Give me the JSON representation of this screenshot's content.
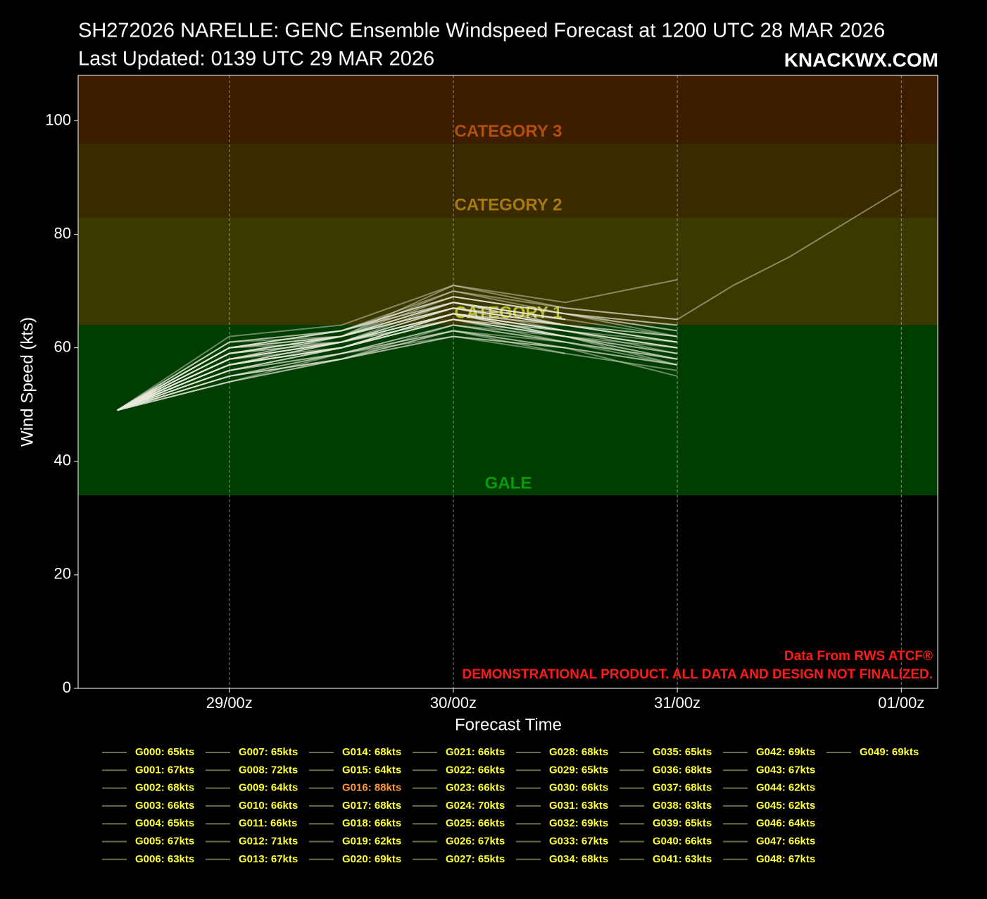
{
  "chart_data": {
    "type": "line",
    "title": "SH272026 NARELLE: GENC Ensemble Windspeed Forecast at 1200 UTC 28 MAR 2026",
    "subtitle": "Last Updated: 0139 UTC 29 MAR 2026",
    "brand": "KNACKWX.COM",
    "x_label": "Forecast Time",
    "y_label": "Wind Speed (kts)",
    "annotations": [
      "Data From RWS ATCF®",
      "DEMONSTRATIONAL PRODUCT. ALL DATA AND DESIGN NOT FINALIZED."
    ],
    "annotation_color": "#ff1a1a",
    "x": [
      0,
      12,
      24,
      36,
      48,
      60,
      66,
      72,
      84
    ],
    "xlim": [
      -4.2,
      87.9
    ],
    "xticks": [
      {
        "value": 12,
        "label": "29/00z"
      },
      {
        "value": 36,
        "label": "30/00z"
      },
      {
        "value": 60,
        "label": "31/00z"
      },
      {
        "value": 84,
        "label": "01/00z"
      }
    ],
    "ylim": [
      0,
      108
    ],
    "yticks": [
      0,
      20,
      40,
      60,
      80,
      100
    ],
    "grid": true,
    "line_color": "#e8e8dc",
    "legend_line_color": "#6b6b45",
    "bands": [
      {
        "name": "GALE",
        "from": 34,
        "to": 64,
        "color": "#003d00",
        "label_color": "#0a9a0a"
      },
      {
        "name": "CATEGORY 1",
        "from": 64,
        "to": 83,
        "color": "#3a3a00",
        "label_color": "#bdbd1e"
      },
      {
        "name": "CATEGORY 2",
        "from": 83,
        "to": 96,
        "color": "#3a2a00",
        "label_color": "#a87a10"
      },
      {
        "name": "CATEGORY 3",
        "from": 96,
        "to": 108,
        "color": "#3d1c00",
        "label_color": "#b0500a"
      }
    ],
    "series": [
      {
        "name": "G000: 65kts",
        "color": "#ffff33",
        "values": [
          49,
          58,
          61,
          65,
          63,
          60,
          null,
          null,
          null
        ]
      },
      {
        "name": "G001: 67kts",
        "color": "#ffff33",
        "values": [
          49,
          59,
          62,
          67,
          64,
          null,
          null,
          null,
          null
        ]
      },
      {
        "name": "G002: 68kts",
        "color": "#ffff33",
        "values": [
          49,
          60,
          63,
          68,
          65,
          62,
          null,
          null,
          null
        ]
      },
      {
        "name": "G003: 66kts",
        "color": "#ffff33",
        "values": [
          49,
          57,
          60,
          66,
          62,
          58,
          null,
          null,
          null
        ]
      },
      {
        "name": "G004: 65kts",
        "color": "#ffff33",
        "values": [
          49,
          56,
          60,
          65,
          61,
          null,
          null,
          null,
          null
        ]
      },
      {
        "name": "G005: 67kts",
        "color": "#ffff33",
        "values": [
          49,
          58,
          62,
          67,
          64,
          61,
          null,
          null,
          null
        ]
      },
      {
        "name": "G006: 63kts",
        "color": "#ffff33",
        "values": [
          49,
          55,
          59,
          63,
          60,
          57,
          null,
          null,
          null
        ]
      },
      {
        "name": "G007: 65kts",
        "color": "#ffff33",
        "values": [
          49,
          57,
          61,
          65,
          62,
          null,
          null,
          null,
          null
        ]
      },
      {
        "name": "G008: 72kts",
        "color": "#ffff33",
        "values": [
          49,
          60,
          62,
          71,
          68,
          72,
          null,
          null,
          null
        ]
      },
      {
        "name": "G009: 64kts",
        "color": "#ffff33",
        "values": [
          49,
          56,
          59,
          64,
          61,
          58,
          null,
          null,
          null
        ]
      },
      {
        "name": "G010: 66kts",
        "color": "#ffff33",
        "values": [
          49,
          58,
          61,
          66,
          63,
          null,
          null,
          null,
          null
        ]
      },
      {
        "name": "G011: 66kts",
        "color": "#ffff33",
        "values": [
          49,
          57,
          60,
          66,
          64,
          61,
          null,
          null,
          null
        ]
      },
      {
        "name": "G012: 71kts",
        "color": "#ffff33",
        "values": [
          49,
          62,
          64,
          71,
          67,
          65,
          null,
          null,
          null
        ]
      },
      {
        "name": "G013: 67kts",
        "color": "#ffff33",
        "values": [
          49,
          59,
          62,
          67,
          63,
          59,
          null,
          null,
          null
        ]
      },
      {
        "name": "G014: 68kts",
        "color": "#ffff33",
        "values": [
          49,
          60,
          63,
          68,
          65,
          null,
          null,
          null,
          null
        ]
      },
      {
        "name": "G015: 64kts",
        "color": "#ffff33",
        "values": [
          49,
          55,
          58,
          64,
          61,
          57,
          null,
          null,
          null
        ]
      },
      {
        "name": "G016: 88kts",
        "color": "#ff9933",
        "values": [
          49,
          59,
          62,
          70,
          67,
          65,
          71,
          76,
          88
        ]
      },
      {
        "name": "G017: 68kts",
        "color": "#ffff33",
        "values": [
          49,
          60,
          62,
          68,
          64,
          61,
          null,
          null,
          null
        ]
      },
      {
        "name": "G018: 66kts",
        "color": "#ffff33",
        "values": [
          49,
          57,
          60,
          66,
          63,
          null,
          null,
          null,
          null
        ]
      },
      {
        "name": "G019: 62kts",
        "color": "#ffff33",
        "values": [
          49,
          54,
          58,
          62,
          60,
          55,
          null,
          null,
          null
        ]
      },
      {
        "name": "G020: 69kts",
        "color": "#ffff33",
        "values": [
          49,
          61,
          63,
          69,
          66,
          63,
          null,
          null,
          null
        ]
      },
      {
        "name": "G021: 66kts",
        "color": "#ffff33",
        "values": [
          49,
          58,
          61,
          66,
          62,
          58,
          null,
          null,
          null
        ]
      },
      {
        "name": "G022: 66kts",
        "color": "#ffff33",
        "values": [
          49,
          57,
          61,
          66,
          64,
          null,
          null,
          null,
          null
        ]
      },
      {
        "name": "G023: 66kts",
        "color": "#ffff33",
        "values": [
          49,
          58,
          60,
          66,
          63,
          60,
          null,
          null,
          null
        ]
      },
      {
        "name": "G024: 70kts",
        "color": "#ffff33",
        "values": [
          49,
          60,
          63,
          70,
          66,
          64,
          null,
          null,
          null
        ]
      },
      {
        "name": "G025: 66kts",
        "color": "#ffff33",
        "values": [
          49,
          57,
          61,
          66,
          63,
          null,
          null,
          null,
          null
        ]
      },
      {
        "name": "G026: 67kts",
        "color": "#ffff33",
        "values": [
          49,
          59,
          62,
          67,
          64,
          62,
          null,
          null,
          null
        ]
      },
      {
        "name": "G027: 65kts",
        "color": "#ffff33",
        "values": [
          49,
          56,
          60,
          65,
          62,
          59,
          null,
          null,
          null
        ]
      },
      {
        "name": "G028: 68kts",
        "color": "#ffff33",
        "values": [
          49,
          60,
          62,
          68,
          65,
          null,
          null,
          null,
          null
        ]
      },
      {
        "name": "G029: 65kts",
        "color": "#ffff33",
        "values": [
          49,
          57,
          60,
          65,
          62,
          57,
          null,
          null,
          null
        ]
      },
      {
        "name": "G030: 66kts",
        "color": "#ffff33",
        "values": [
          49,
          58,
          61,
          66,
          63,
          60,
          null,
          null,
          null
        ]
      },
      {
        "name": "G031: 63kts",
        "color": "#ffff33",
        "values": [
          49,
          55,
          58,
          63,
          60,
          null,
          null,
          null,
          null
        ]
      },
      {
        "name": "G032: 69kts",
        "color": "#ffff33",
        "values": [
          49,
          60,
          63,
          69,
          66,
          63,
          null,
          null,
          null
        ]
      },
      {
        "name": "G033: 67kts",
        "color": "#ffff33",
        "values": [
          49,
          59,
          61,
          67,
          64,
          61,
          null,
          null,
          null
        ]
      },
      {
        "name": "G034: 68kts",
        "color": "#ffff33",
        "values": [
          49,
          58,
          62,
          68,
          65,
          null,
          null,
          null,
          null
        ]
      },
      {
        "name": "G035: 65kts",
        "color": "#ffff33",
        "values": [
          49,
          56,
          60,
          65,
          62,
          59,
          null,
          null,
          null
        ]
      },
      {
        "name": "G036: 68kts",
        "color": "#ffff33",
        "values": [
          49,
          59,
          62,
          68,
          64,
          62,
          null,
          null,
          null
        ]
      },
      {
        "name": "G037: 68kts",
        "color": "#ffff33",
        "values": [
          49,
          60,
          61,
          68,
          65,
          null,
          null,
          null,
          null
        ]
      },
      {
        "name": "G038: 63kts",
        "color": "#ffff33",
        "values": [
          49,
          55,
          59,
          63,
          59,
          56,
          null,
          null,
          null
        ]
      },
      {
        "name": "G039: 65kts",
        "color": "#ffff33",
        "values": [
          49,
          57,
          60,
          65,
          63,
          60,
          null,
          null,
          null
        ]
      },
      {
        "name": "G040: 66kts",
        "color": "#ffff33",
        "values": [
          49,
          58,
          61,
          66,
          62,
          null,
          null,
          null,
          null
        ]
      },
      {
        "name": "G041: 63kts",
        "color": "#ffff33",
        "values": [
          49,
          54,
          58,
          63,
          61,
          58,
          null,
          null,
          null
        ]
      },
      {
        "name": "G042: 69kts",
        "color": "#ffff33",
        "values": [
          49,
          61,
          62,
          69,
          66,
          62,
          null,
          null,
          null
        ]
      },
      {
        "name": "G043: 67kts",
        "color": "#ffff33",
        "values": [
          49,
          59,
          61,
          67,
          64,
          null,
          null,
          null,
          null
        ]
      },
      {
        "name": "G044: 62kts",
        "color": "#ffff33",
        "values": [
          49,
          55,
          58,
          62,
          60,
          57,
          null,
          null,
          null
        ]
      },
      {
        "name": "G045: 62kts",
        "color": "#ffff33",
        "values": [
          49,
          54,
          59,
          62,
          59,
          null,
          null,
          null,
          null
        ]
      },
      {
        "name": "G046: 64kts",
        "color": "#ffff33",
        "values": [
          49,
          56,
          59,
          64,
          62,
          60,
          null,
          null,
          null
        ]
      },
      {
        "name": "G047: 66kts",
        "color": "#ffff33",
        "values": [
          49,
          57,
          60,
          66,
          63,
          61,
          null,
          null,
          null
        ]
      },
      {
        "name": "G048: 67kts",
        "color": "#ffff33",
        "values": [
          49,
          58,
          61,
          67,
          65,
          null,
          null,
          null,
          null
        ]
      },
      {
        "name": "G049: 69kts",
        "color": "#ffff33",
        "values": [
          49,
          61,
          63,
          69,
          66,
          64,
          null,
          null,
          null
        ]
      }
    ]
  }
}
